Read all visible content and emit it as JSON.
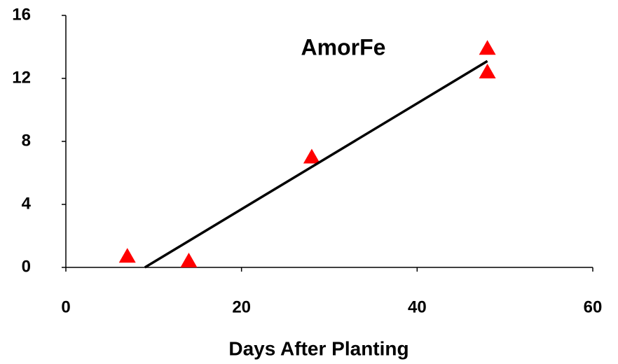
{
  "chart_data": {
    "type": "scatter",
    "title": "AmorFe",
    "x_label": "Days After Planting",
    "xlim": [
      0,
      60
    ],
    "xticks": [
      0,
      20,
      40,
      60
    ],
    "ylim": [
      0,
      16
    ],
    "yticks": [
      0,
      4,
      8,
      12,
      16
    ],
    "series": [
      {
        "type": "scatter",
        "color": "#ff0000",
        "x": [
          7,
          14,
          28,
          48,
          48
        ],
        "values": [
          0.7,
          0.4,
          7.0,
          13.9,
          12.4
        ]
      },
      {
        "type": "line",
        "color": "#000000",
        "x": [
          9,
          48
        ],
        "values": [
          0,
          13.1
        ]
      }
    ]
  }
}
